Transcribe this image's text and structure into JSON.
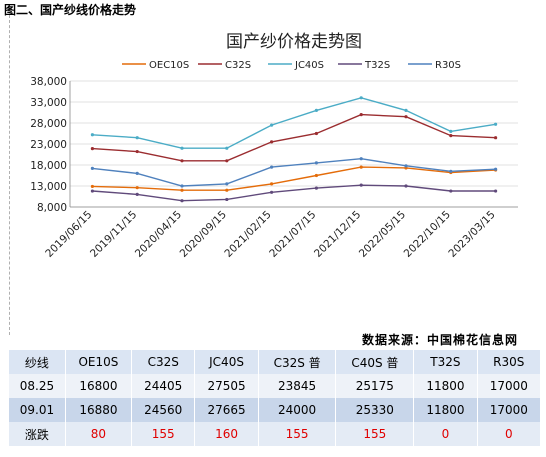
{
  "caption": "图二、国产纱线价格走势",
  "source_note": "数据来源：中国棉花信息网",
  "chart_data": {
    "type": "line",
    "title": "国产纱价格走势图",
    "x": [
      "2019/06/15",
      "2019/11/15",
      "2020/04/15",
      "2020/09/15",
      "2021/02/15",
      "2021/07/15",
      "2021/12/15",
      "2022/05/15",
      "2022/10/15",
      "2023/03/15"
    ],
    "yticks": [
      "38,000",
      "33,000",
      "28,000",
      "23,000",
      "18,000",
      "13,000",
      "8,000"
    ],
    "ylim": [
      8000,
      38000
    ],
    "series": [
      {
        "name": "OEC10S",
        "color": "#e46c0a",
        "values": [
          12900,
          12600,
          12000,
          12000,
          13500,
          15500,
          17500,
          17300,
          16200,
          16800
        ]
      },
      {
        "name": "C32S",
        "color": "#9b2d30",
        "values": [
          21900,
          21200,
          19000,
          19000,
          23500,
          25500,
          30000,
          29500,
          25000,
          24500
        ]
      },
      {
        "name": "JC40S",
        "color": "#4bacc6",
        "values": [
          25200,
          24500,
          22000,
          22000,
          27500,
          31000,
          34000,
          31000,
          26000,
          27700
        ]
      },
      {
        "name": "T32S",
        "color": "#604a7b",
        "values": [
          11800,
          11000,
          9500,
          9800,
          11500,
          12500,
          13200,
          13000,
          11800,
          11800
        ]
      },
      {
        "name": "R30S",
        "color": "#4f81bd",
        "values": [
          17200,
          16000,
          13000,
          13500,
          17500,
          18500,
          19500,
          17800,
          16500,
          17000
        ]
      }
    ]
  },
  "table": {
    "headers": [
      "纱线",
      "OE10S",
      "C32S",
      "JC40S",
      "C32S 普",
      "C40S 普",
      "T32S",
      "R30S"
    ],
    "rows": [
      [
        "08.25",
        "16800",
        "24405",
        "27505",
        "23845",
        "25175",
        "11800",
        "17000"
      ],
      [
        "09.01",
        "16880",
        "24560",
        "27665",
        "24000",
        "25330",
        "11800",
        "17000"
      ],
      [
        "涨跌",
        "80",
        "155",
        "160",
        "155",
        "155",
        "0",
        "0"
      ]
    ]
  }
}
